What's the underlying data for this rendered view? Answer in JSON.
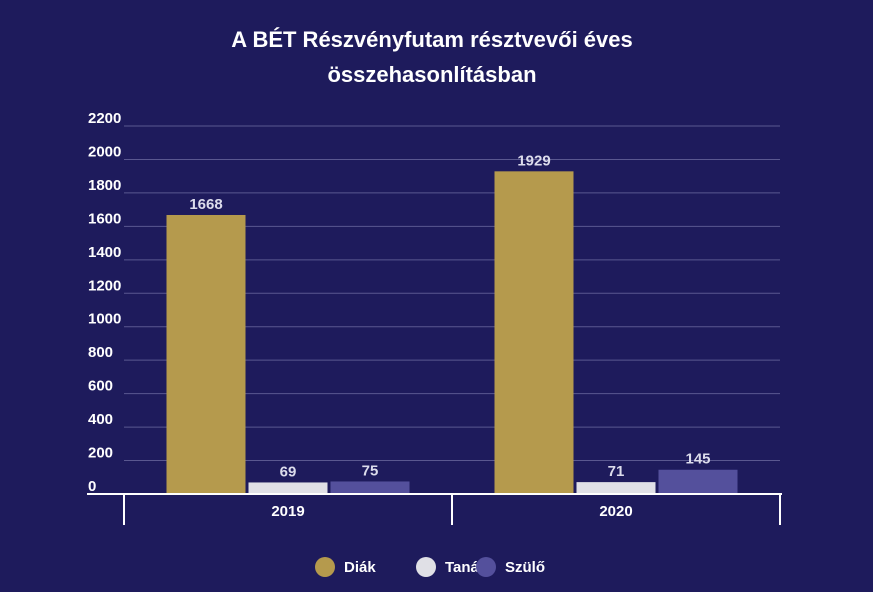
{
  "chart_data": {
    "type": "bar",
    "title_lines": [
      "A BÉT Részvényfutam résztvevői éves",
      "összehasonlításban"
    ],
    "categories": [
      "2019",
      "2020"
    ],
    "series": [
      {
        "name": "Diák",
        "values": [
          1668,
          1929
        ],
        "color": "#b59a4d"
      },
      {
        "name": "Tanár",
        "values": [
          69,
          71
        ],
        "color": "#e0e0e6"
      },
      {
        "name": "Szülő",
        "values": [
          75,
          145
        ],
        "color": "#54509c"
      }
    ],
    "yticks": [
      0,
      200,
      400,
      600,
      800,
      1000,
      1200,
      1400,
      1600,
      1800,
      2000,
      2200
    ],
    "ylim": [
      0,
      2200
    ],
    "legend_position": "bottom",
    "grid": true
  }
}
